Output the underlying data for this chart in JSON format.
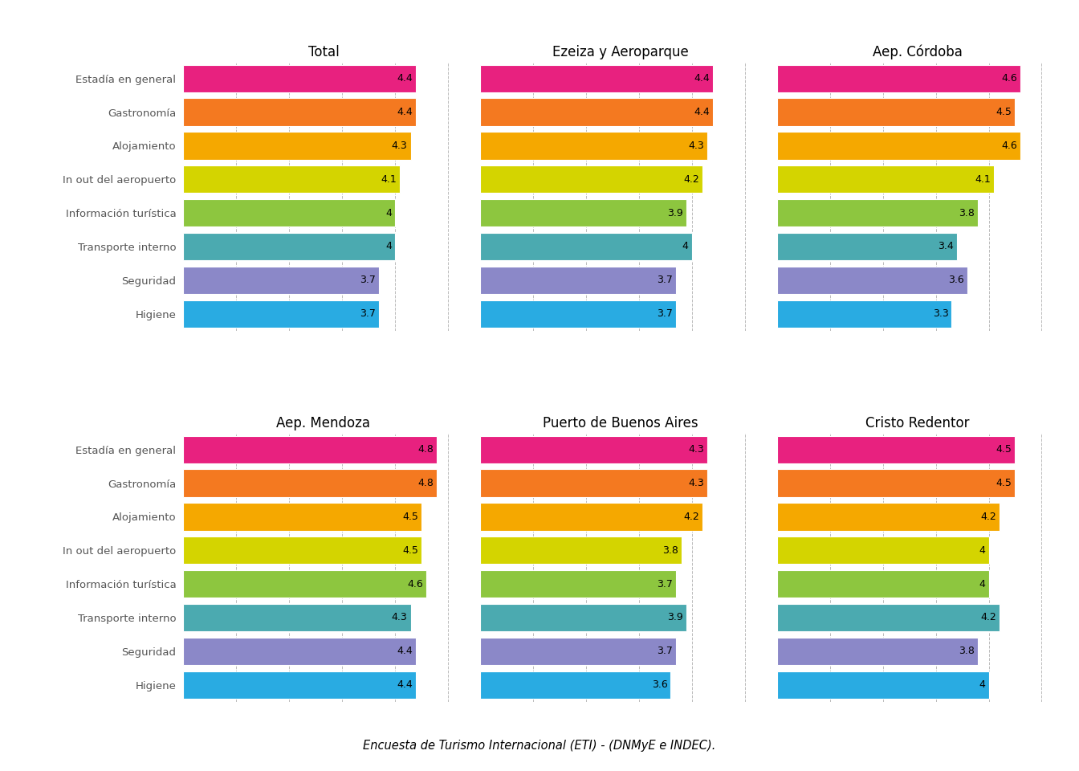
{
  "panels": [
    {
      "title": "Total",
      "values": [
        4.4,
        4.4,
        4.3,
        4.1,
        4.0,
        4.0,
        3.7,
        3.7
      ]
    },
    {
      "title": "Ezeiza y Aeroparque",
      "values": [
        4.4,
        4.4,
        4.3,
        4.2,
        3.9,
        4.0,
        3.7,
        3.7
      ]
    },
    {
      "title": "Aep. Córdoba",
      "values": [
        4.6,
        4.5,
        4.6,
        4.1,
        3.8,
        3.4,
        3.6,
        3.3
      ]
    },
    {
      "title": "Aep. Mendoza",
      "values": [
        4.8,
        4.8,
        4.5,
        4.5,
        4.6,
        4.3,
        4.4,
        4.4
      ]
    },
    {
      "title": "Puerto de Buenos Aires",
      "values": [
        4.3,
        4.3,
        4.2,
        3.8,
        3.7,
        3.9,
        3.7,
        3.6
      ]
    },
    {
      "title": "Cristo Redentor",
      "values": [
        4.5,
        4.5,
        4.2,
        4.0,
        4.0,
        4.2,
        3.8,
        4.0
      ]
    }
  ],
  "categories": [
    "Estadía en general",
    "Gastronomía",
    "Alojamiento",
    "In out del aeropuerto",
    "Información turística",
    "Transporte interno",
    "Seguridad",
    "Higiene"
  ],
  "bar_colors": [
    "#E8217F",
    "#F47920",
    "#F5A800",
    "#D4D400",
    "#8DC63F",
    "#4BAAB0",
    "#8B88C8",
    "#29ABE2"
  ],
  "xlim": [
    0,
    5.3
  ],
  "footnote": "Encuesta de Turismo Internacional (ETI) - (DNMyE e INDEC).",
  "background_color": "#FFFFFF",
  "title_fontsize": 12,
  "label_fontsize": 9.5,
  "value_fontsize": 9
}
